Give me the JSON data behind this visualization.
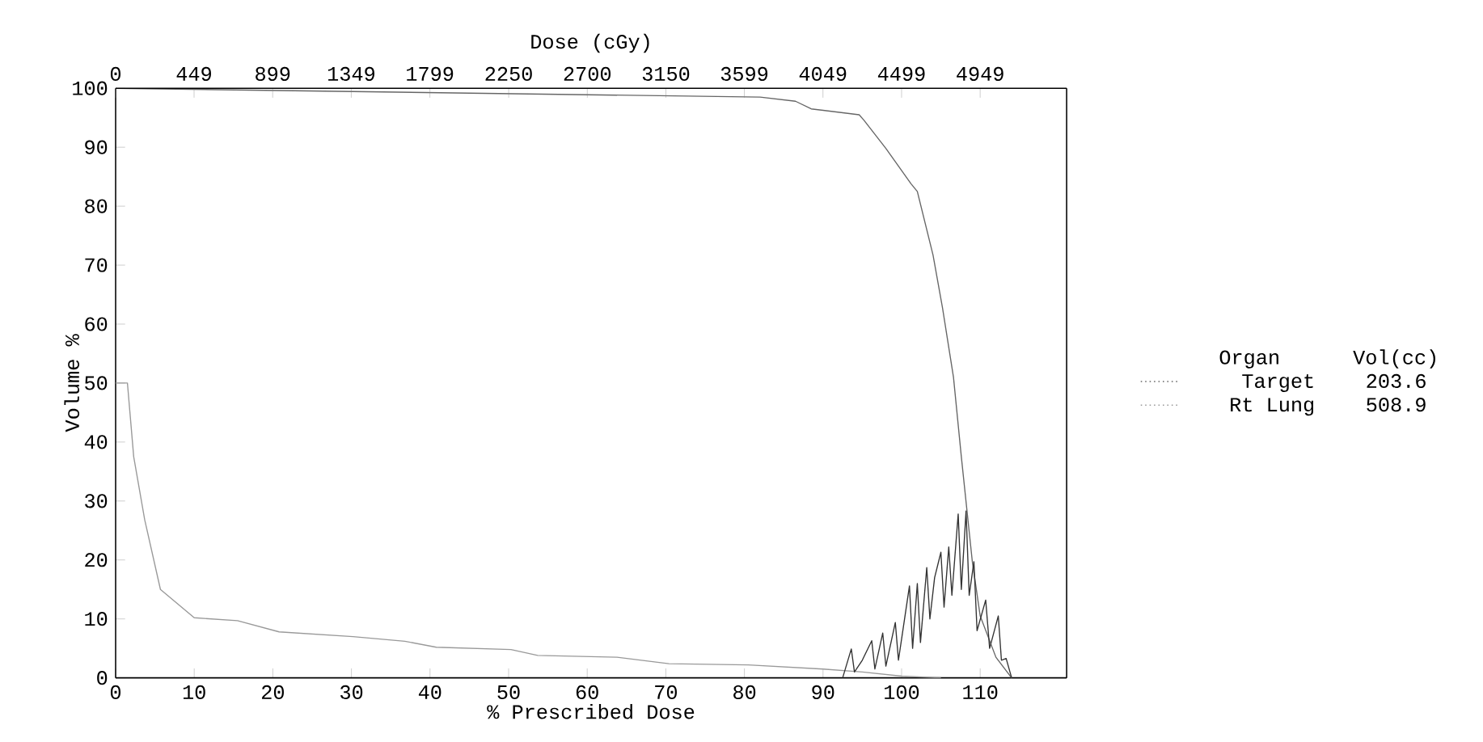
{
  "chart_data": {
    "type": "line",
    "xlabel": "% Prescribed Dose",
    "ylabel": "Volume %",
    "x2label": "Dose (cGy)",
    "legend_title": "Organ",
    "annotations": [
      "Vol(cc)",
      "203.6",
      "508.9"
    ],
    "xlim": [
      0,
      121
    ],
    "xticks": [
      0,
      10,
      20,
      30,
      40,
      50,
      60,
      70,
      80,
      90,
      100,
      110
    ],
    "x2lim": [
      0,
      5444
    ],
    "x2ticks": [
      0,
      449,
      899,
      1349,
      1799,
      2250,
      2700,
      3150,
      3599,
      4049,
      4499,
      4949
    ],
    "ylim": [
      0,
      100
    ],
    "yticks": [
      0,
      10,
      20,
      30,
      40,
      50,
      60,
      70,
      80,
      90,
      100
    ],
    "grid": false,
    "legend": "right",
    "series": [
      {
        "name": "Target",
        "color": "#666666",
        "x": [
          0,
          82,
          86.5,
          88.5,
          94.6,
          95.2,
          98,
          101.2,
          102,
          104,
          105.2,
          106.6,
          107.6,
          108.3,
          109,
          110,
          112,
          114
        ],
        "values": [
          100,
          98.5,
          97.8,
          96.5,
          95.5,
          94.6,
          89.8,
          83.8,
          82.5,
          71.7,
          62.8,
          51,
          37.5,
          28.6,
          19.7,
          10.5,
          3.5,
          0
        ]
      },
      {
        "name": "Rt Lung",
        "color": "#999999",
        "x": [
          0,
          1.5,
          2.3,
          3.7,
          5.7,
          10,
          15.5,
          20.8,
          30.2,
          36.8,
          40.8,
          50.3,
          53.7,
          63.8,
          70.4,
          80.5,
          90,
          95,
          100,
          105
        ],
        "values": [
          50,
          50,
          37.5,
          26.8,
          15,
          10.2,
          9.7,
          7.8,
          7,
          6.2,
          5.2,
          4.8,
          3.8,
          3.5,
          2.4,
          2.2,
          1.5,
          1,
          0.3,
          0
        ]
      },
      {
        "color": "#333333",
        "x": [
          92.5,
          93.6,
          94,
          95,
          96.2,
          96.6,
          97.6,
          98,
          99.2,
          99.6,
          101,
          101.4,
          102,
          102.4,
          103.2,
          103.6,
          104.2,
          105,
          105.4,
          106,
          106.4,
          107.2,
          107.6,
          108.2,
          108.6,
          109.2,
          109.6,
          110.7,
          111.2,
          112.3,
          112.7,
          113.3,
          114
        ],
        "values": [
          0,
          4.9,
          1,
          3,
          6.3,
          1.5,
          7.6,
          2,
          9.4,
          3,
          15.6,
          5,
          16,
          6,
          18.7,
          10,
          17,
          21.3,
          12,
          22.2,
          14,
          27.8,
          15,
          28.3,
          14,
          19.7,
          8,
          13.2,
          5,
          10.5,
          3,
          3.3,
          0
        ]
      }
    ]
  }
}
